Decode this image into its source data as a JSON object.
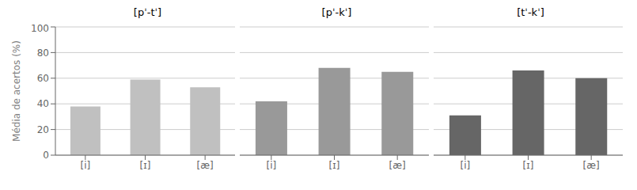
{
  "chart_data": [
    {
      "type": "bar",
      "title": "[pˈ-tˈ]",
      "y_label": "Média de acertos (%)",
      "categories": [
        "[i]",
        "[ɪ]",
        "[æ]"
      ],
      "values": [
        38,
        59,
        53
      ],
      "color": "#c0c0c0",
      "ylim": [
        0,
        100
      ],
      "yticks": [
        0,
        20,
        40,
        60,
        80,
        100
      ],
      "grid": true
    },
    {
      "type": "bar",
      "title": "[pˈ-kˈ]",
      "categories": [
        "[i]",
        "[ɪ]",
        "[æ]"
      ],
      "values": [
        42,
        68,
        65
      ],
      "color": "#999999",
      "ylim": [
        0,
        100
      ],
      "yticks": [
        0,
        20,
        40,
        60,
        80,
        100
      ],
      "grid": true,
      "tick_labels": "x"
    },
    {
      "type": "bar",
      "title": "[tˈ-kˈ]",
      "categories": [
        "[i]",
        "[ɪ]",
        "[æ]"
      ],
      "values": [
        31,
        66,
        60
      ],
      "color": "#666666",
      "ylim": [
        0,
        100
      ],
      "yticks": [
        0,
        20,
        40,
        60,
        80,
        100
      ],
      "grid": true,
      "tick_labels": "x"
    }
  ]
}
